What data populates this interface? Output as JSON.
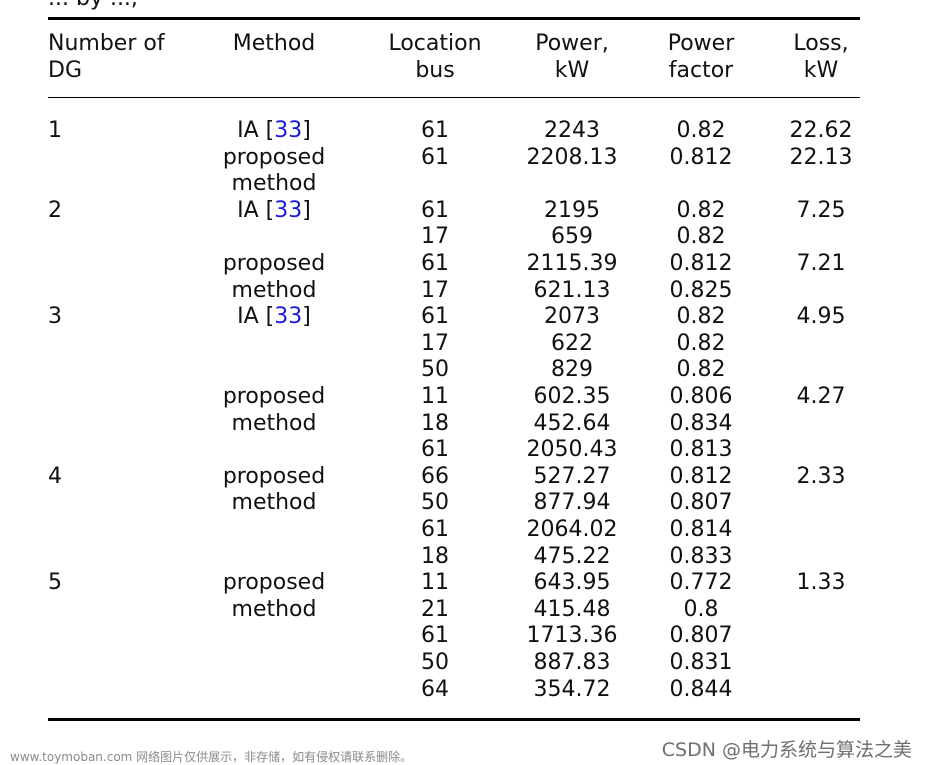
{
  "caption_fragment": "... by ...,",
  "headers": {
    "dg_count": [
      "Number of",
      "DG"
    ],
    "method": [
      "Method"
    ],
    "location": [
      "Location",
      "bus"
    ],
    "power": [
      "Power,",
      "kW"
    ],
    "pf": [
      "Power",
      "factor"
    ],
    "loss": [
      "Loss,",
      "kW"
    ]
  },
  "rows": [
    {
      "dg": "1",
      "method": "IA",
      "cite": "33",
      "bus": "61",
      "power": "2243",
      "pf": "0.82",
      "loss": "22.62"
    },
    {
      "dg": "",
      "method": "proposed",
      "cite": "",
      "bus": "61",
      "power": "2208.13",
      "pf": "0.812",
      "loss": "22.13"
    },
    {
      "dg": "",
      "method": "method",
      "cite": "",
      "bus": "",
      "power": "",
      "pf": "",
      "loss": ""
    },
    {
      "dg": "2",
      "method": "IA",
      "cite": "33",
      "bus": "61",
      "power": "2195",
      "pf": "0.82",
      "loss": "7.25"
    },
    {
      "dg": "",
      "method": "",
      "cite": "",
      "bus": "17",
      "power": "659",
      "pf": "0.82",
      "loss": ""
    },
    {
      "dg": "",
      "method": "proposed",
      "cite": "",
      "bus": "61",
      "power": "2115.39",
      "pf": "0.812",
      "loss": "7.21"
    },
    {
      "dg": "",
      "method": "method",
      "cite": "",
      "bus": "17",
      "power": "621.13",
      "pf": "0.825",
      "loss": ""
    },
    {
      "dg": "3",
      "method": "IA",
      "cite": "33",
      "bus": "61",
      "power": "2073",
      "pf": "0.82",
      "loss": "4.95"
    },
    {
      "dg": "",
      "method": "",
      "cite": "",
      "bus": "17",
      "power": "622",
      "pf": "0.82",
      "loss": ""
    },
    {
      "dg": "",
      "method": "",
      "cite": "",
      "bus": "50",
      "power": "829",
      "pf": "0.82",
      "loss": ""
    },
    {
      "dg": "",
      "method": "proposed",
      "cite": "",
      "bus": "11",
      "power": "602.35",
      "pf": "0.806",
      "loss": "4.27"
    },
    {
      "dg": "",
      "method": "method",
      "cite": "",
      "bus": "18",
      "power": "452.64",
      "pf": "0.834",
      "loss": ""
    },
    {
      "dg": "",
      "method": "",
      "cite": "",
      "bus": "61",
      "power": "2050.43",
      "pf": "0.813",
      "loss": ""
    },
    {
      "dg": "4",
      "method": "proposed",
      "cite": "",
      "bus": "66",
      "power": "527.27",
      "pf": "0.812",
      "loss": "2.33"
    },
    {
      "dg": "",
      "method": "method",
      "cite": "",
      "bus": "50",
      "power": "877.94",
      "pf": "0.807",
      "loss": ""
    },
    {
      "dg": "",
      "method": "",
      "cite": "",
      "bus": "61",
      "power": "2064.02",
      "pf": "0.814",
      "loss": ""
    },
    {
      "dg": "",
      "method": "",
      "cite": "",
      "bus": "18",
      "power": "475.22",
      "pf": "0.833",
      "loss": ""
    },
    {
      "dg": "5",
      "method": "proposed",
      "cite": "",
      "bus": "11",
      "power": "643.95",
      "pf": "0.772",
      "loss": "1.33"
    },
    {
      "dg": "",
      "method": "method",
      "cite": "",
      "bus": "21",
      "power": "415.48",
      "pf": "0.8",
      "loss": ""
    },
    {
      "dg": "",
      "method": "",
      "cite": "",
      "bus": "61",
      "power": "1713.36",
      "pf": "0.807",
      "loss": ""
    },
    {
      "dg": "",
      "method": "",
      "cite": "",
      "bus": "50",
      "power": "887.83",
      "pf": "0.831",
      "loss": ""
    },
    {
      "dg": "",
      "method": "",
      "cite": "",
      "bus": "64",
      "power": "354.72",
      "pf": "0.844",
      "loss": ""
    }
  ],
  "watermarks": {
    "left": "www.toymoban.com 网络图片仅供展示，非存储，如有侵权请联系删除。",
    "right": "CSDN @电力系统与算法之美"
  },
  "colors": {
    "citation": "#1a1adc",
    "text": "#111111",
    "rule": "#000000"
  }
}
